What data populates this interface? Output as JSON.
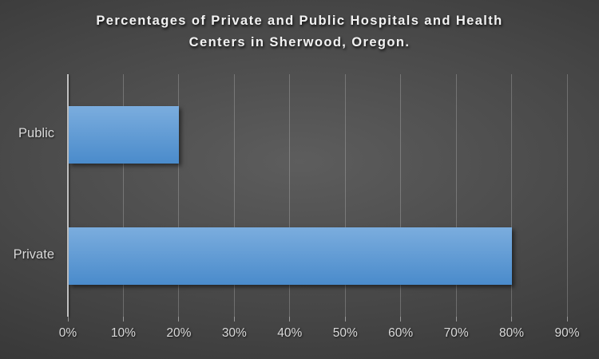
{
  "chart_data": {
    "type": "bar",
    "orientation": "horizontal",
    "title": "Percentages of Private and Public Hospitals and Health Centers in Sherwood, Oregon.",
    "title_lines": [
      "Percentages of Private and Public Hospitals and Health",
      "Centers in Sherwood, Oregon."
    ],
    "categories": [
      "Public",
      "Private"
    ],
    "values": [
      20,
      80
    ],
    "xlabel": "",
    "ylabel": "",
    "xlim": [
      0,
      90
    ],
    "x_tick_values": [
      0,
      10,
      20,
      30,
      40,
      50,
      60,
      70,
      80,
      90
    ],
    "x_ticks": [
      "0%",
      "10%",
      "20%",
      "30%",
      "40%",
      "50%",
      "60%",
      "70%",
      "80%",
      "90%"
    ],
    "grid": true,
    "legend": "none",
    "colors": {
      "bar_top": "#7badde",
      "bar_bottom": "#4a8bcb",
      "background_center": "#5d5d5d",
      "background_edge": "#2b2b2b",
      "text": "#f2f2f2",
      "tick_text": "#d9d9d9",
      "axis": "#c2c2c2",
      "gridline": "rgba(255,255,255,0.22)"
    }
  }
}
